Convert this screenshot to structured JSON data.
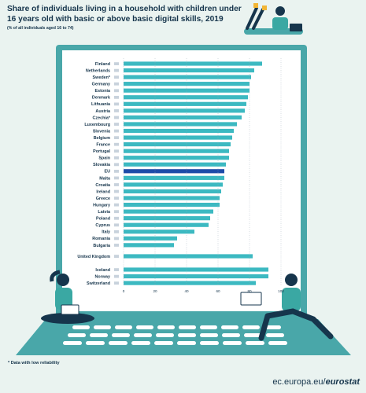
{
  "title": "Share of individuals living in a household with children under 16 years old with basic or above basic digital skills, 2019",
  "subtitle": "(% of all individuals aged 16 to 74)",
  "footnote": "* Data with low reliability",
  "footer": {
    "url_prefix": "ec.europa.eu/",
    "url_brand": "eurostat"
  },
  "colors": {
    "bar": "#3cb9c1",
    "highlight": "#1d4ba8",
    "laptop_frame": "#49a7a9",
    "screen": "#ffffff",
    "text": "#16354c"
  },
  "chart_data": {
    "type": "bar",
    "orientation": "horizontal",
    "xlim": [
      0,
      100
    ],
    "x_ticks": [
      "0",
      "20",
      "40",
      "60",
      "80",
      "100"
    ],
    "highlight_category": "EU",
    "groups": [
      {
        "categories": [
          "Finland",
          "Netherlands",
          "Sweden*",
          "Germany",
          "Estonia",
          "Denmark",
          "Lithuania",
          "Austria",
          "Czechia*",
          "Luxembourg",
          "Slovenia",
          "Belgium",
          "France",
          "Portugal",
          "Spain",
          "Slovakia",
          "EU",
          "Malta",
          "Croatia",
          "Ireland",
          "Greece",
          "Hungary",
          "Latvia",
          "Poland",
          "Cyprus",
          "Italy",
          "Romania",
          "Bulgaria"
        ],
        "values": [
          88,
          83,
          81,
          80,
          80,
          79,
          78,
          77,
          75,
          72,
          70,
          69,
          68,
          67,
          67,
          65,
          64,
          64,
          63,
          62,
          61,
          61,
          57,
          55,
          54,
          45,
          34,
          32
        ]
      },
      {
        "categories": [
          "United Kingdom"
        ],
        "values": [
          82
        ]
      },
      {
        "categories": [
          "Iceland",
          "Norway",
          "Switzerland"
        ],
        "values": [
          92,
          92,
          84
        ]
      }
    ]
  }
}
